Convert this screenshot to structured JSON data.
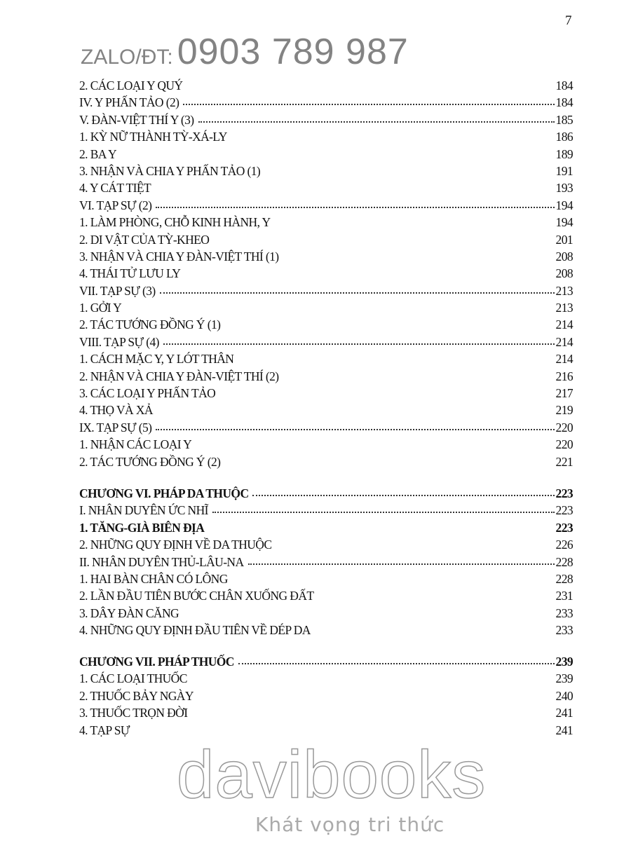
{
  "page_number": "7",
  "sections": [
    [
      {
        "text": "2. CÁC LOẠI Y QUÝ",
        "page": "184",
        "dots": false,
        "bold": false
      },
      {
        "text": "IV. Y PHẤN TẢO (2)",
        "page": "184",
        "dots": true,
        "bold": false
      },
      {
        "text": "V. ĐÀN-VIỆT THÍ Y (3)",
        "page": "185",
        "dots": true,
        "bold": false
      },
      {
        "text": "1. KỲ NỮ THÀNH TỲ-XÁ-LY",
        "page": "186",
        "dots": false,
        "bold": false
      },
      {
        "text": "2. BA Y",
        "page": "189",
        "dots": false,
        "bold": false
      },
      {
        "text": "3. NHẬN VÀ CHIA Y PHẤN TẢO (1)",
        "page": "191",
        "dots": false,
        "bold": false
      },
      {
        "text": "4. Y CÁT TIỆT",
        "page": "193",
        "dots": false,
        "bold": false
      },
      {
        "text": "VI. TẠP SỰ (2)",
        "page": "194",
        "dots": true,
        "bold": false
      },
      {
        "text": "1. LÀM PHÒNG, CHỖ KINH HÀNH, Y",
        "page": "194",
        "dots": false,
        "bold": false
      },
      {
        "text": "2. DI VẬT CỦA TỲ-KHEO",
        "page": "201",
        "dots": false,
        "bold": false
      },
      {
        "text": "3. NHẬN VÀ CHIA Y ĐÀN-VIỆT THÍ (1)",
        "page": "208",
        "dots": false,
        "bold": false
      },
      {
        "text": "4. THÁI TỬ LƯU LY",
        "page": "208",
        "dots": false,
        "bold": false
      },
      {
        "text": "VII. TẠP SỰ (3)",
        "page": "213",
        "dots": true,
        "bold": false
      },
      {
        "text": "1. GỞI Y",
        "page": "213",
        "dots": false,
        "bold": false
      },
      {
        "text": "2. TÁC TƯỚNG ĐỒNG Ý (1)",
        "page": "214",
        "dots": false,
        "bold": false
      },
      {
        "text": "VIII. TẠP SỰ (4)",
        "page": "214",
        "dots": true,
        "bold": false
      },
      {
        "text": "1. CÁCH MẶC Y, Y LÓT THÂN",
        "page": "214",
        "dots": false,
        "bold": false
      },
      {
        "text": "2. NHẬN VÀ CHIA Y ĐÀN-VIỆT THÍ (2)",
        "page": "216",
        "dots": false,
        "bold": false
      },
      {
        "text": "3. CÁC LOẠI Y PHẤN TẢO",
        "page": "217",
        "dots": false,
        "bold": false
      },
      {
        "text": "4. THỌ VÀ XẢ",
        "page": "219",
        "dots": false,
        "bold": false
      },
      {
        "text": "IX. TẠP SỰ (5)",
        "page": "220",
        "dots": true,
        "bold": false
      },
      {
        "text": "1. NHẬN CÁC LOẠI Y",
        "page": "220",
        "dots": false,
        "bold": false
      },
      {
        "text": "2. TÁC TƯỚNG ĐỒNG Ý (2)",
        "page": "221",
        "dots": false,
        "bold": false
      }
    ],
    [
      {
        "text": "CHƯƠNG VI. PHÁP DA THUỘC",
        "page": "223",
        "dots": true,
        "bold": true
      },
      {
        "text": "I. NHÂN DUYÊN ỨC NHĨ",
        "page": "223",
        "dots": true,
        "bold": false
      },
      {
        "text": "1. TĂNG-GIÀ BIÊN ĐỊA",
        "page": "223",
        "dots": false,
        "bold": true
      },
      {
        "text": "2. NHỮNG QUY ĐỊNH VỀ DA THUỘC",
        "page": "226",
        "dots": false,
        "bold": false
      },
      {
        "text": "II. NHÂN DUYÊN THỦ-LÂU-NA",
        "page": "228",
        "dots": true,
        "bold": false
      },
      {
        "text": "1. HAI BÀN CHÂN CÓ LÔNG",
        "page": "228",
        "dots": false,
        "bold": false
      },
      {
        "text": "2. LẦN ĐẦU TIÊN BƯỚC CHÂN XUỐNG ĐẤT",
        "page": "231",
        "dots": false,
        "bold": false
      },
      {
        "text": "3. DÂY ĐÀN CĂNG",
        "page": "233",
        "dots": false,
        "bold": false
      },
      {
        "text": "4. NHỮNG QUY ĐỊNH ĐẦU TIÊN VỀ DÉP DA",
        "page": "233",
        "dots": false,
        "bold": false
      }
    ],
    [
      {
        "text": "CHƯƠNG VII. PHÁP THUỐC",
        "page": "239",
        "dots": true,
        "bold": true
      },
      {
        "text": "1. CÁC LOẠI THUỐC",
        "page": "239",
        "dots": false,
        "bold": false
      },
      {
        "text": "2. THUỐC BẢY NGÀY",
        "page": "240",
        "dots": false,
        "bold": false
      },
      {
        "text": "3. THUỐC TRỌN ĐỜI",
        "page": "241",
        "dots": false,
        "bold": false
      },
      {
        "text": "4. TẠP SỰ",
        "page": "241",
        "dots": false,
        "bold": false
      }
    ]
  ],
  "watermarks": {
    "contact_label": "ZALO/ĐT:",
    "phone": "0903 789 987",
    "brand": "davibooks",
    "tagline": "Khát vọng tri thức"
  }
}
